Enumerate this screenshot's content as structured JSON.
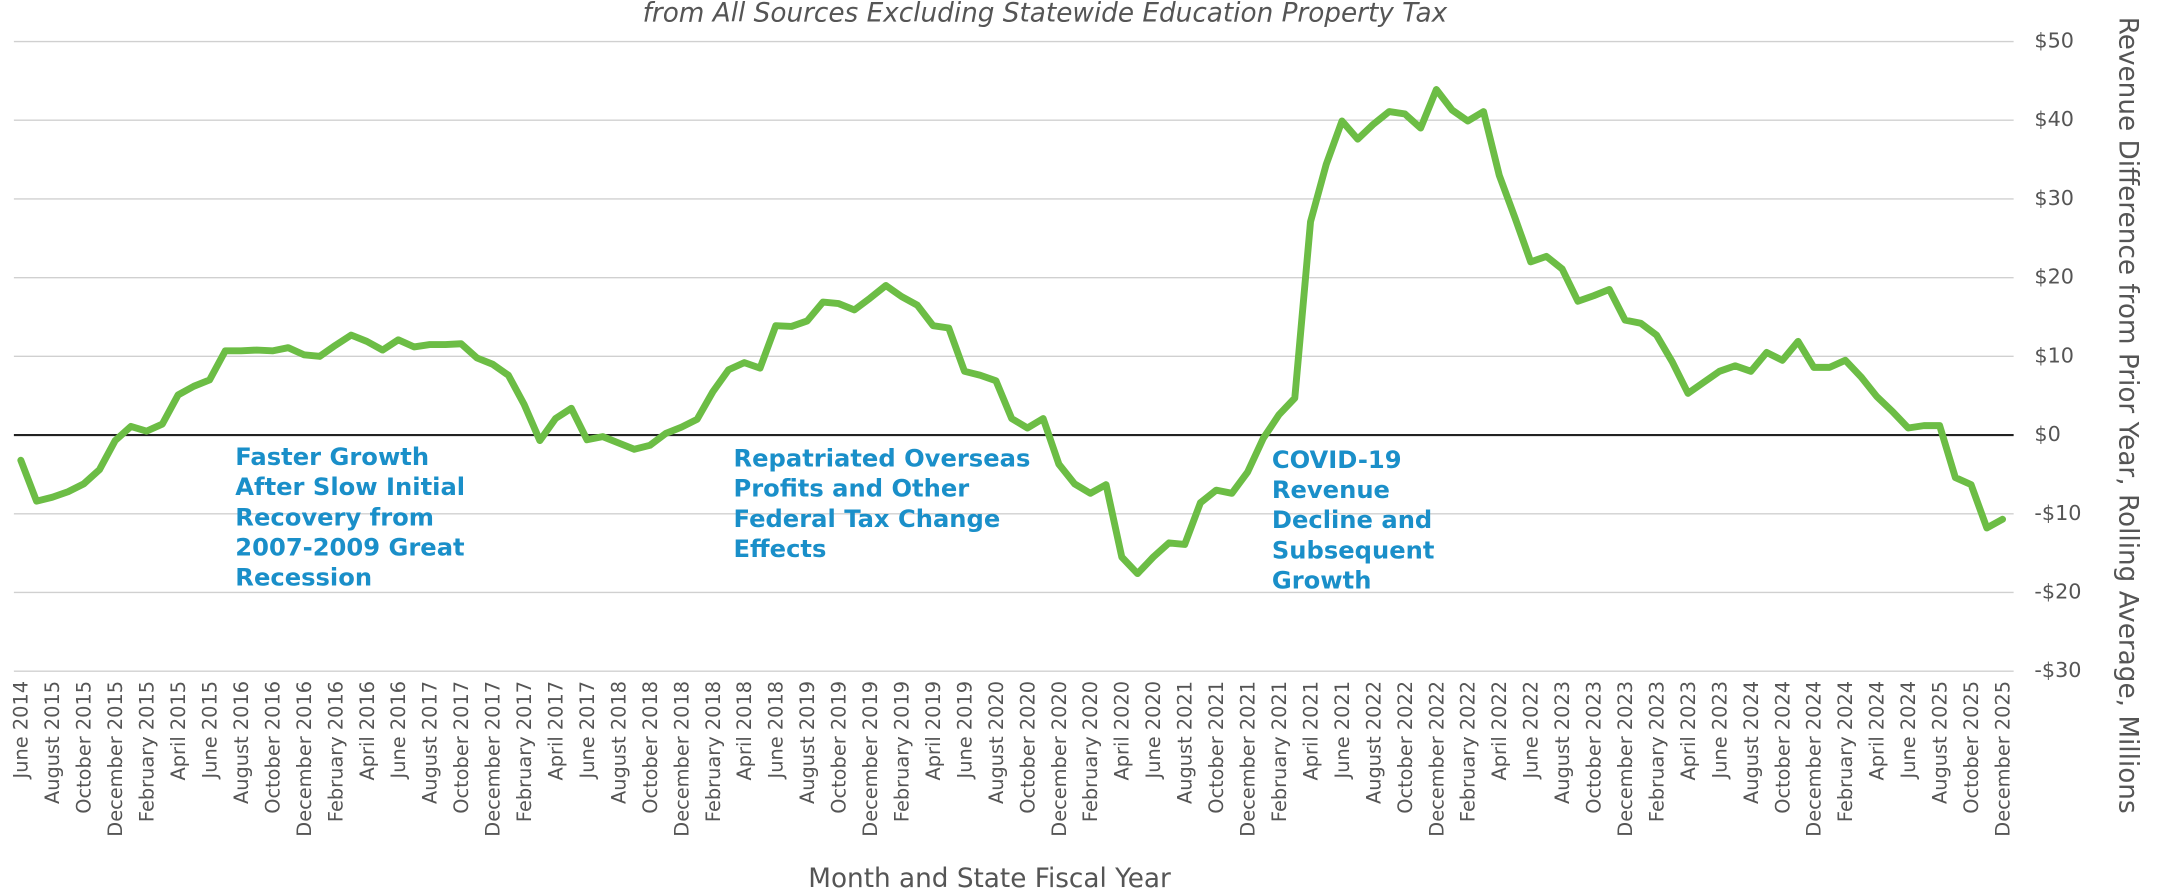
{
  "chart_data": {
    "type": "line",
    "subtitle": "from All Sources Excluding Statewide Education Property Tax",
    "x_label": "Month and State Fiscal Year",
    "y_label": "Revenue Difference from Prior Year, Rolling Average, Millions",
    "categories": [
      "June 2014",
      null,
      "August 2015",
      null,
      "October 2015",
      null,
      "December 2015",
      null,
      "February 2015",
      null,
      "April 2015",
      null,
      "June 2015",
      null,
      "August 2016",
      null,
      "October 2016",
      null,
      "December 2016",
      null,
      "February 2016",
      null,
      "April 2016",
      null,
      "June 2016",
      null,
      "August 2017",
      null,
      "October 2017",
      null,
      "December 2017",
      null,
      "February 2017",
      null,
      "April 2017",
      null,
      "June 2017",
      null,
      "August 2018",
      null,
      "October 2018",
      null,
      "December 2018",
      null,
      "February 2018",
      null,
      "April 2018",
      null,
      "June 2018",
      null,
      "August 2019",
      null,
      "October 2019",
      null,
      "December 2019",
      null,
      "February 2019",
      null,
      "April 2019",
      null,
      "June 2019",
      null,
      "August 2020",
      null,
      "October 2020",
      null,
      "December 2020",
      null,
      "February 2020",
      null,
      "April 2020",
      null,
      "June 2020",
      null,
      "August 2021",
      null,
      "October 2021",
      null,
      "December 2021",
      null,
      "February 2021",
      null,
      "April 2021",
      null,
      "June 2021",
      null,
      "August 2022",
      null,
      "October 2022",
      null,
      "December 2022",
      null,
      "February 2022",
      null,
      "April 2022",
      null,
      "June 2022",
      null,
      "August 2023",
      null,
      "October 2023",
      null,
      "December 2023",
      null,
      "February 2023",
      null,
      "April 2023",
      null,
      "June 2023",
      null,
      "August 2024",
      null,
      "October 2024",
      null,
      "December 2024",
      null,
      "February 2024",
      null,
      "April 2024",
      null,
      "June 2024",
      null,
      "August 2025",
      null,
      "October 2025",
      null,
      "December 2025"
    ],
    "series": [
      {
        "name": "Revenue difference",
        "color": "#6cbd45",
        "values": [
          -3.2,
          -8.4,
          -7.9,
          -7.2,
          -6.2,
          -4.4,
          -0.7,
          1.1,
          0.5,
          1.4,
          5.1,
          6.2,
          7.0,
          10.7,
          10.7,
          10.8,
          10.7,
          11.1,
          10.2,
          10.0,
          11.4,
          12.7,
          11.9,
          10.8,
          12.1,
          11.2,
          11.5,
          11.5,
          11.6,
          9.8,
          9.0,
          7.6,
          3.9,
          -0.7,
          2.1,
          3.4,
          -0.6,
          -0.2,
          -1.0,
          -1.8,
          -1.3,
          0.2,
          1.0,
          2.0,
          5.5,
          8.3,
          9.2,
          8.5,
          13.9,
          13.8,
          14.5,
          16.9,
          16.7,
          15.9,
          17.4,
          19.0,
          17.6,
          16.5,
          13.9,
          13.6,
          8.1,
          7.6,
          6.9,
          2.1,
          0.9,
          2.1,
          -3.7,
          -6.2,
          -7.4,
          -6.3,
          -15.5,
          -17.6,
          -15.5,
          -13.7,
          -13.9,
          -8.6,
          -7.0,
          -7.4,
          -4.7,
          -0.4,
          2.6,
          4.7,
          27.1,
          34.4,
          39.9,
          37.6,
          39.5,
          41.1,
          40.8,
          39.0,
          43.9,
          41.3,
          39.9,
          41.1,
          33.0,
          27.6,
          22.0,
          22.7,
          21.1,
          17.0,
          17.7,
          18.5,
          14.6,
          14.2,
          12.7,
          9.3,
          5.3,
          6.7,
          8.1,
          8.8,
          8.1,
          10.5,
          9.5,
          11.9,
          8.6,
          8.6,
          9.5,
          7.4,
          4.9,
          3.0,
          0.9,
          1.2,
          1.2,
          -5.4,
          -6.3,
          -11.8,
          -10.7
        ]
      }
    ],
    "ylim": [
      -30,
      50
    ],
    "yticks": [
      {
        "value": -30,
        "label": "-$30"
      },
      {
        "value": -20,
        "label": "-$20"
      },
      {
        "value": -10,
        "label": "-$10"
      },
      {
        "value": 0,
        "label": "$0"
      },
      {
        "value": 10,
        "label": "$10"
      },
      {
        "value": 20,
        "label": "$20"
      },
      {
        "value": 30,
        "label": "$30"
      },
      {
        "value": 40,
        "label": "$40"
      },
      {
        "value": 50,
        "label": "$50"
      }
    ],
    "grid": true,
    "y_axis_side": "right",
    "annotations": [
      {
        "lines": [
          "Faster Growth",
          "After Slow Initial",
          "Recovery from",
          "2007-2009 Great",
          "Recession"
        ]
      },
      {
        "lines": [
          "Repatriated Overseas",
          "Profits and Other",
          "Federal Tax Change",
          "Effects"
        ]
      },
      {
        "lines": [
          "COVID-19",
          "Revenue",
          "Decline and",
          "Subsequent",
          "Growth"
        ]
      }
    ]
  }
}
